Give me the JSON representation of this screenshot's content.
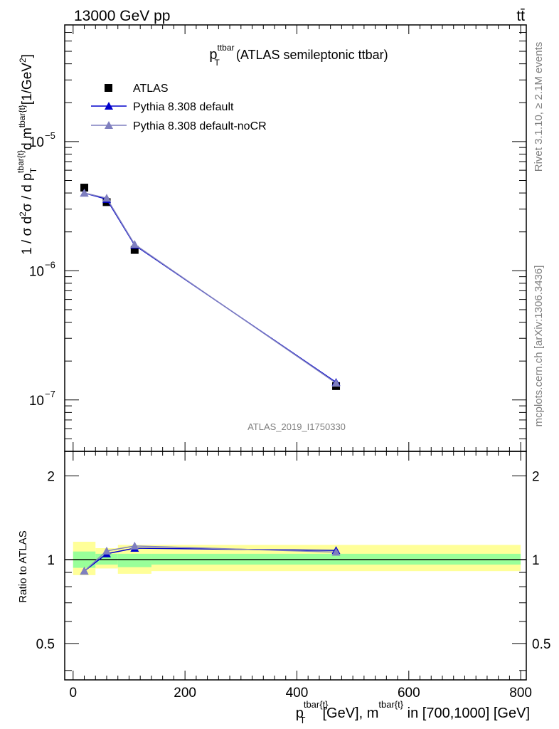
{
  "header": {
    "process": "13000 GeV pp",
    "final_state": "tt̄"
  },
  "side_labels": {
    "rivet": "Rivet 3.1.10, ≥ 2.1M events",
    "mcplots": "mcplots.cern.ch [arXiv:1306.3436]"
  },
  "main_title": {
    "observable": "p",
    "sub": "T",
    "sup": "ttbar",
    "rest": " (ATLAS semileptonic ttbar)"
  },
  "analysis_id": "ATLAS_2019_I1750330",
  "ylabel_main": "1 / σ d²σ / d p_T^{tbar{t}} d m^{tbar{t}} [1/GeV²]",
  "ylabel_ratio": "Ratio to ATLAS",
  "xlabel": "p_T^{tbar{t}} [GeV], m^{tbar{t}} in [700,1000] [GeV]",
  "colors": {
    "data": "#000000",
    "default": "#0000cc",
    "nocr": "#7f7fbf",
    "band_inner": "#99ff99",
    "band_outer": "#ffff99"
  },
  "chart_data": [
    {
      "type": "scatter",
      "panel": "main",
      "x_scale": "linear",
      "y_scale": "log",
      "xlim": [
        -15,
        810
      ],
      "ylim": [
        4e-08,
        8e-05
      ],
      "y_ticks": [
        {
          "value": 1e-07,
          "label": "10",
          "exp": "−7"
        },
        {
          "value": 1e-06,
          "label": "10",
          "exp": "−6"
        },
        {
          "value": 1e-05,
          "label": "10",
          "exp": "−5"
        }
      ],
      "series": [
        {
          "name": "ATLAS",
          "style": "square",
          "x": [
            20,
            60,
            110,
            470
          ],
          "y": [
            4.4e-06,
            3.4e-06,
            1.45e-06,
            1.28e-07
          ]
        },
        {
          "name": "Pythia 8.308 default",
          "style": "triangle-line",
          "x": [
            20,
            60,
            110,
            470
          ],
          "y": [
            4e-06,
            3.58e-06,
            1.58e-06,
            1.37e-07
          ]
        },
        {
          "name": "Pythia 8.308 default-noCR",
          "style": "triangle-line",
          "x": [
            20,
            60,
            110,
            470
          ],
          "y": [
            4e-06,
            3.65e-06,
            1.6e-06,
            1.35e-07
          ]
        }
      ]
    },
    {
      "type": "line",
      "panel": "ratio",
      "x_scale": "linear",
      "y_scale": "log",
      "xlim": [
        -15,
        810
      ],
      "ylim": [
        0.37,
        2.45
      ],
      "x_ticks": [
        0,
        200,
        400,
        600,
        800
      ],
      "y_ticks": [
        0.5,
        1,
        2
      ],
      "reference": 1,
      "bands": [
        {
          "x": [
            0,
            40
          ],
          "inner": [
            0.935,
            1.07
          ],
          "outer": [
            0.88,
            1.16
          ]
        },
        {
          "x": [
            40,
            80
          ],
          "inner": [
            0.96,
            1.05
          ],
          "outer": [
            0.93,
            1.1
          ]
        },
        {
          "x": [
            80,
            140
          ],
          "inner": [
            0.94,
            1.05
          ],
          "outer": [
            0.89,
            1.13
          ]
        },
        {
          "x": [
            140,
            800
          ],
          "inner": [
            0.96,
            1.05
          ],
          "outer": [
            0.91,
            1.13
          ]
        }
      ],
      "series": [
        {
          "name": "Pythia 8.308 default",
          "x": [
            20,
            60,
            110,
            470
          ],
          "y": [
            0.91,
            1.05,
            1.1,
            1.08
          ]
        },
        {
          "name": "Pythia 8.308 default-noCR",
          "x": [
            20,
            60,
            110,
            470
          ],
          "y": [
            0.91,
            1.075,
            1.12,
            1.065
          ]
        }
      ]
    }
  ]
}
